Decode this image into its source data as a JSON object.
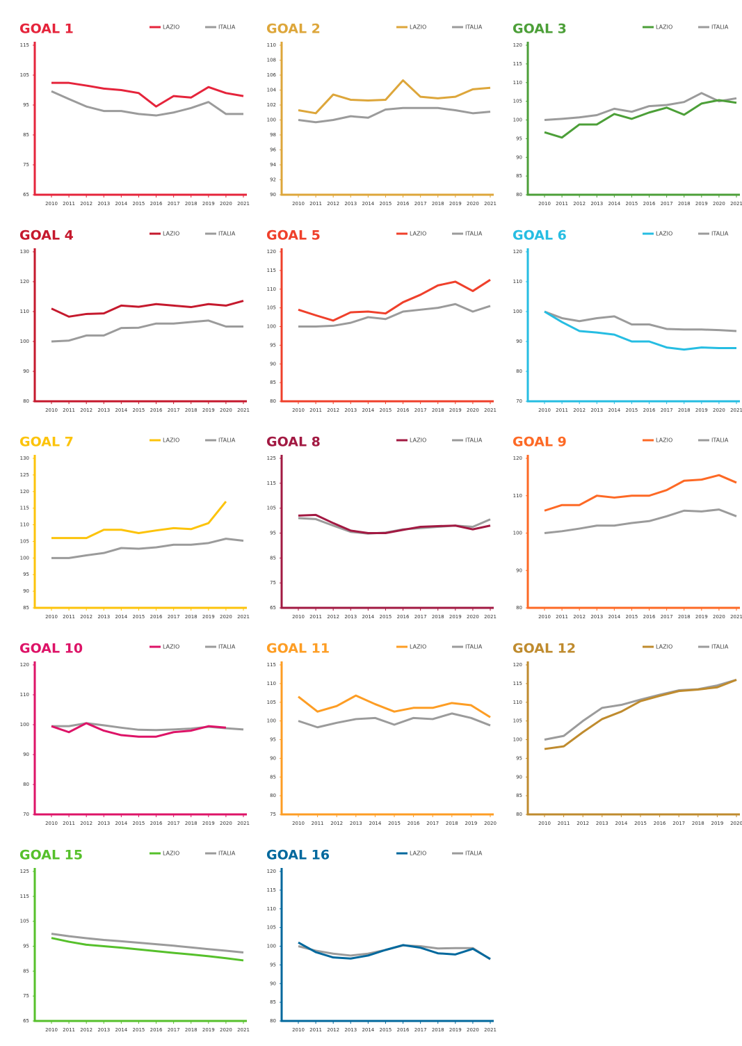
{
  "chart_data": [
    {
      "type": "line",
      "title": "GOAL 1",
      "x": [
        2010,
        2011,
        2012,
        2013,
        2014,
        2015,
        2016,
        2017,
        2018,
        2019,
        2020,
        2021
      ],
      "xticks": [
        2010,
        2011,
        2012,
        2013,
        2014,
        2015,
        2016,
        2017,
        2018,
        2019,
        2020,
        2021
      ],
      "ylim": [
        65,
        115
      ],
      "yticks": [
        65,
        75,
        85,
        95,
        105,
        115
      ],
      "series": [
        {
          "name": "LAZIO",
          "color": "#e5243b",
          "values": [
            102.4,
            102.4,
            101.5,
            100.5,
            100,
            99,
            94.5,
            98,
            97.5,
            101,
            99,
            98
          ]
        },
        {
          "name": "ITALIA",
          "color": "#9b9b9b",
          "values": [
            99.6,
            97,
            94.5,
            93,
            93,
            92,
            91.5,
            92.5,
            94,
            96,
            92,
            92
          ]
        }
      ]
    },
    {
      "type": "line",
      "title": "GOAL 2",
      "x": [
        2010,
        2011,
        2012,
        2013,
        2014,
        2015,
        2016,
        2017,
        2018,
        2019,
        2020,
        2021
      ],
      "xticks": [
        2010,
        2011,
        2012,
        2013,
        2014,
        2015,
        2016,
        2017,
        2018,
        2019,
        2020,
        2021
      ],
      "ylim": [
        90,
        110
      ],
      "yticks": [
        90,
        92,
        94,
        96,
        98,
        100,
        102,
        104,
        106,
        108,
        110
      ],
      "series": [
        {
          "name": "LAZIO",
          "color": "#dda63a",
          "values": [
            101.3,
            100.9,
            103.4,
            102.7,
            102.6,
            102.7,
            105.3,
            103.1,
            102.9,
            103.1,
            104.1,
            104.3
          ]
        },
        {
          "name": "ITALIA",
          "color": "#9b9b9b",
          "values": [
            100,
            99.7,
            100,
            100.5,
            100.3,
            101.4,
            101.6,
            101.6,
            101.6,
            101.3,
            100.9,
            101.1
          ]
        }
      ]
    },
    {
      "type": "line",
      "title": "GOAL 3",
      "x": [
        2010,
        2011,
        2012,
        2013,
        2014,
        2015,
        2016,
        2017,
        2018,
        2019,
        2020,
        2021
      ],
      "xticks": [
        2010,
        2011,
        2012,
        2013,
        2014,
        2015,
        2016,
        2017,
        2018,
        2019,
        2020,
        2021
      ],
      "ylim": [
        80,
        120
      ],
      "yticks": [
        80,
        85,
        90,
        95,
        100,
        105,
        110,
        115,
        120
      ],
      "series": [
        {
          "name": "LAZIO",
          "color": "#4c9f38",
          "values": [
            96.7,
            95.3,
            98.8,
            98.8,
            101.6,
            100.3,
            102,
            103.3,
            101.4,
            104.4,
            105.3,
            104.6
          ]
        },
        {
          "name": "ITALIA",
          "color": "#9b9b9b",
          "values": [
            100,
            100.3,
            100.7,
            101.3,
            103,
            102.2,
            103.7,
            104,
            104.8,
            107.2,
            105,
            105.8
          ]
        }
      ]
    },
    {
      "type": "line",
      "title": "GOAL 4",
      "x": [
        2010,
        2011,
        2012,
        2013,
        2014,
        2015,
        2016,
        2017,
        2018,
        2019,
        2020,
        2021
      ],
      "xticks": [
        2010,
        2011,
        2012,
        2013,
        2014,
        2015,
        2016,
        2017,
        2018,
        2019,
        2020,
        2021
      ],
      "ylim": [
        80,
        130
      ],
      "yticks": [
        80,
        90,
        100,
        110,
        120,
        130
      ],
      "series": [
        {
          "name": "LAZIO",
          "color": "#c5192d",
          "values": [
            111,
            108.3,
            109.2,
            109.4,
            112,
            111.6,
            112.5,
            112,
            111.5,
            112.5,
            112,
            113.6
          ]
        },
        {
          "name": "ITALIA",
          "color": "#9b9b9b",
          "values": [
            100,
            100.3,
            102,
            102,
            104.5,
            104.6,
            106,
            106,
            106.5,
            107,
            105,
            105
          ]
        }
      ]
    },
    {
      "type": "line",
      "title": "GOAL 5",
      "x": [
        2010,
        2011,
        2012,
        2013,
        2014,
        2015,
        2016,
        2017,
        2018,
        2019,
        2020,
        2021
      ],
      "xticks": [
        2010,
        2011,
        2012,
        2013,
        2014,
        2015,
        2016,
        2017,
        2018,
        2019,
        2020,
        2021
      ],
      "ylim": [
        80,
        120
      ],
      "yticks": [
        80,
        85,
        90,
        95,
        100,
        105,
        110,
        115,
        120
      ],
      "series": [
        {
          "name": "LAZIO",
          "color": "#ef402b",
          "values": [
            104.5,
            103,
            101.6,
            103.8,
            104,
            103.5,
            106.5,
            108.5,
            111,
            112,
            109.5,
            112.5
          ]
        },
        {
          "name": "ITALIA",
          "color": "#9b9b9b",
          "values": [
            100,
            100,
            100.2,
            101,
            102.5,
            102,
            104,
            104.5,
            105,
            106,
            104,
            105.5
          ]
        }
      ]
    },
    {
      "type": "line",
      "title": "GOAL 6",
      "x": [
        2010,
        2011,
        2012,
        2013,
        2014,
        2015,
        2016,
        2017,
        2018,
        2019,
        2020,
        2021
      ],
      "xticks": [
        2010,
        2011,
        2012,
        2013,
        2014,
        2015,
        2016,
        2017,
        2018,
        2019,
        2020,
        2021
      ],
      "ylim": [
        70,
        120
      ],
      "yticks": [
        70,
        80,
        90,
        100,
        110,
        120
      ],
      "series": [
        {
          "name": "LAZIO",
          "color": "#26bde2",
          "values": [
            100,
            96.5,
            93.5,
            93,
            92.3,
            90,
            90,
            88,
            87.3,
            88,
            87.8,
            87.8
          ]
        },
        {
          "name": "ITALIA",
          "color": "#9b9b9b",
          "values": [
            100,
            97.8,
            96.8,
            97.8,
            98.4,
            95.7,
            95.7,
            94.2,
            94,
            94,
            93.8,
            93.5
          ]
        }
      ]
    },
    {
      "type": "line",
      "title": "GOAL 7",
      "x": [
        2010,
        2011,
        2012,
        2013,
        2014,
        2015,
        2016,
        2017,
        2018,
        2019,
        2020,
        2021
      ],
      "xticks": [
        2010,
        2011,
        2012,
        2013,
        2014,
        2015,
        2016,
        2017,
        2018,
        2019,
        2020,
        2021
      ],
      "ylim": [
        85,
        130
      ],
      "yticks": [
        85,
        90,
        95,
        100,
        105,
        110,
        115,
        120,
        125,
        130
      ],
      "series": [
        {
          "name": "LAZIO",
          "color": "#fcc30b",
          "values": [
            106,
            106,
            106,
            108.5,
            108.5,
            107.5,
            108.3,
            109,
            108.7,
            110.5,
            117,
            null
          ]
        },
        {
          "name": "ITALIA",
          "color": "#9b9b9b",
          "values": [
            100,
            100,
            100.8,
            101.5,
            103,
            102.8,
            103.2,
            104,
            104,
            104.5,
            105.8,
            105.2
          ]
        }
      ]
    },
    {
      "type": "line",
      "title": "GOAL 8",
      "x": [
        2010,
        2011,
        2012,
        2013,
        2014,
        2015,
        2016,
        2017,
        2018,
        2019,
        2020,
        2021
      ],
      "xticks": [
        2010,
        2011,
        2012,
        2013,
        2014,
        2015,
        2016,
        2017,
        2018,
        2019,
        2020,
        2021
      ],
      "ylim": [
        65,
        125
      ],
      "yticks": [
        65,
        75,
        85,
        95,
        105,
        115,
        125
      ],
      "series": [
        {
          "name": "LAZIO",
          "color": "#a21942",
          "values": [
            102,
            102.3,
            99,
            96,
            95,
            95,
            96.3,
            97.5,
            97.8,
            98,
            96.5,
            98
          ]
        },
        {
          "name": "ITALIA",
          "color": "#9b9b9b",
          "values": [
            101,
            100.6,
            98,
            95.5,
            94.8,
            95.2,
            96.5,
            97,
            97.5,
            98,
            97.5,
            100.5
          ]
        }
      ]
    },
    {
      "type": "line",
      "title": "GOAL 9",
      "x": [
        2010,
        2011,
        2012,
        2013,
        2014,
        2015,
        2016,
        2017,
        2018,
        2019,
        2020,
        2021
      ],
      "xticks": [
        2010,
        2011,
        2012,
        2013,
        2014,
        2015,
        2016,
        2017,
        2018,
        2019,
        2020,
        2021
      ],
      "ylim": [
        80,
        120
      ],
      "yticks": [
        80,
        90,
        100,
        110,
        120
      ],
      "series": [
        {
          "name": "LAZIO",
          "color": "#fd6925",
          "values": [
            106,
            107.5,
            107.5,
            110,
            109.5,
            110,
            110,
            111.5,
            114,
            114.3,
            115.5,
            113.5
          ]
        },
        {
          "name": "ITALIA",
          "color": "#9b9b9b",
          "values": [
            100,
            100.5,
            101.2,
            102,
            102,
            102.7,
            103.2,
            104.5,
            106,
            105.8,
            106.3,
            104.5
          ]
        }
      ]
    },
    {
      "type": "line",
      "title": "GOAL 10",
      "x": [
        2010,
        2011,
        2012,
        2013,
        2014,
        2015,
        2016,
        2017,
        2018,
        2019,
        2020,
        2021
      ],
      "xticks": [
        2010,
        2011,
        2012,
        2013,
        2014,
        2015,
        2016,
        2017,
        2018,
        2019,
        2020,
        2021
      ],
      "ylim": [
        70,
        120
      ],
      "yticks": [
        70,
        80,
        90,
        100,
        110,
        120
      ],
      "series": [
        {
          "name": "LAZIO",
          "color": "#dd1367",
          "values": [
            99.5,
            97.5,
            100.5,
            98,
            96.5,
            96,
            96,
            97.5,
            98,
            99.5,
            99,
            null
          ]
        },
        {
          "name": "ITALIA",
          "color": "#9b9b9b",
          "values": [
            99.5,
            99.5,
            100.5,
            99.8,
            99,
            98.3,
            98.2,
            98.4,
            98.7,
            99.3,
            98.8,
            98.4
          ]
        }
      ]
    },
    {
      "type": "line",
      "title": "GOAL 11",
      "x": [
        2010,
        2011,
        2012,
        2013,
        2014,
        2015,
        2016,
        2017,
        2018,
        2019,
        2020
      ],
      "xticks": [
        2010,
        2011,
        2012,
        2013,
        2014,
        2015,
        2016,
        2017,
        2018,
        2019,
        2020
      ],
      "ylim": [
        75,
        115
      ],
      "yticks": [
        75,
        80,
        85,
        90,
        95,
        100,
        105,
        110,
        115
      ],
      "series": [
        {
          "name": "LAZIO",
          "color": "#fd9d24",
          "values": [
            106.5,
            102.5,
            104,
            106.8,
            104.5,
            102.5,
            103.5,
            103.5,
            104.8,
            104.2,
            101
          ]
        },
        {
          "name": "ITALIA",
          "color": "#9b9b9b",
          "values": [
            100,
            98.3,
            99.5,
            100.5,
            100.8,
            99,
            100.8,
            100.5,
            102,
            100.8,
            98.8
          ]
        }
      ]
    },
    {
      "type": "line",
      "title": "GOAL 12",
      "x": [
        2010,
        2011,
        2012,
        2013,
        2014,
        2015,
        2016,
        2017,
        2018,
        2019,
        2020
      ],
      "xticks": [
        2010,
        2011,
        2012,
        2013,
        2014,
        2015,
        2016,
        2017,
        2018,
        2019,
        2020
      ],
      "ylim": [
        80,
        120
      ],
      "yticks": [
        80,
        85,
        90,
        95,
        100,
        105,
        110,
        115,
        120
      ],
      "series": [
        {
          "name": "LAZIO",
          "color": "#bf8b2e",
          "values": [
            97.5,
            98.2,
            102,
            105.5,
            107.5,
            110.3,
            111.7,
            113,
            113.4,
            114,
            116
          ]
        },
        {
          "name": "ITALIA",
          "color": "#9b9b9b",
          "values": [
            100,
            101,
            105,
            108.5,
            109.3,
            110.7,
            112,
            113.2,
            113.5,
            114.5,
            116
          ]
        }
      ]
    },
    {
      "type": "line",
      "title": "GOAL 15",
      "x": [
        2010,
        2011,
        2012,
        2013,
        2014,
        2015,
        2016,
        2017,
        2018,
        2019,
        2020,
        2021
      ],
      "xticks": [
        2010,
        2011,
        2012,
        2013,
        2014,
        2015,
        2016,
        2017,
        2018,
        2019,
        2020,
        2021
      ],
      "ylim": [
        65,
        125
      ],
      "yticks": [
        65,
        75,
        85,
        95,
        105,
        115,
        125
      ],
      "series": [
        {
          "name": "LAZIO",
          "color": "#56c02b",
          "values": [
            98.3,
            96.8,
            95.6,
            95,
            94.4,
            93.7,
            93,
            92.3,
            91.7,
            91,
            90.2,
            89.3
          ]
        },
        {
          "name": "ITALIA",
          "color": "#9b9b9b",
          "values": [
            100,
            99,
            98.2,
            97.5,
            97,
            96.4,
            95.8,
            95.2,
            94.5,
            93.8,
            93.2,
            92.5
          ]
        }
      ]
    },
    {
      "type": "line",
      "title": "GOAL 16",
      "x": [
        2010,
        2011,
        2012,
        2013,
        2014,
        2015,
        2016,
        2017,
        2018,
        2019,
        2020,
        2021
      ],
      "xticks": [
        2010,
        2011,
        2012,
        2013,
        2014,
        2015,
        2016,
        2017,
        2018,
        2019,
        2020,
        2021
      ],
      "ylim": [
        80,
        120
      ],
      "yticks": [
        80,
        85,
        90,
        95,
        100,
        105,
        110,
        115,
        120
      ],
      "series": [
        {
          "name": "LAZIO",
          "color": "#00689d",
          "values": [
            101,
            98.4,
            97,
            96.7,
            97.5,
            99,
            100.3,
            99.6,
            98.1,
            97.8,
            99.3,
            96.6
          ]
        },
        {
          "name": "ITALIA",
          "color": "#9b9b9b",
          "values": [
            100,
            98.8,
            98,
            97.5,
            98,
            99,
            100.2,
            100,
            99.4,
            99.5,
            99.5,
            96.5
          ]
        }
      ]
    }
  ]
}
